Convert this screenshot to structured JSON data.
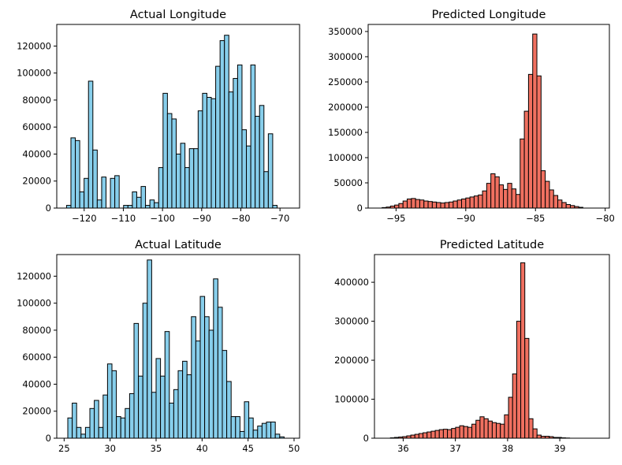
{
  "chart_data": [
    {
      "type": "bar",
      "title": "Actual Longitude",
      "xlim": [
        -127,
        -65
      ],
      "ylim": [
        0,
        136000
      ],
      "xticks": [
        -120,
        -110,
        -100,
        -90,
        -80,
        -70
      ],
      "yticks": [
        0,
        20000,
        40000,
        60000,
        80000,
        100000,
        120000
      ],
      "bin_start": -124.5,
      "bin_width": 1.12,
      "values": [
        2000,
        52000,
        50000,
        12000,
        22000,
        94000,
        43000,
        6000,
        23000,
        0,
        22000,
        24000,
        0,
        2000,
        2000,
        12000,
        8000,
        16000,
        2000,
        6000,
        4000,
        30000,
        85000,
        70000,
        66000,
        40000,
        48000,
        30000,
        44000,
        44000,
        72000,
        85000,
        82000,
        81000,
        105000,
        124000,
        128000,
        86000,
        96000,
        106000,
        58000,
        46000,
        106000,
        68000,
        76000,
        27000,
        55000,
        2000
      ],
      "color": "#87ceeb"
    },
    {
      "type": "bar",
      "title": "Predicted Longitude",
      "xlim": [
        -97,
        -79.7
      ],
      "ylim": [
        0,
        364000
      ],
      "xticks": [
        -95,
        -90,
        -85,
        -80
      ],
      "yticks": [
        0,
        50000,
        100000,
        150000,
        200000,
        250000,
        300000,
        350000
      ],
      "bin_start": -96.3,
      "bin_width": 0.3,
      "values": [
        0,
        1000,
        2000,
        4000,
        6000,
        9000,
        14000,
        18000,
        19000,
        17000,
        16000,
        14000,
        13000,
        12000,
        11000,
        10000,
        11000,
        12000,
        14000,
        16000,
        18000,
        20000,
        22000,
        24000,
        26000,
        34000,
        49000,
        68000,
        62000,
        46000,
        37000,
        49000,
        38000,
        27000,
        137000,
        192000,
        265000,
        345000,
        262000,
        74000,
        53000,
        36000,
        25000,
        16000,
        11000,
        7000,
        5000,
        3000,
        1500
      ],
      "color": "#f07060"
    },
    {
      "type": "bar",
      "title": "Actual Latitude",
      "xlim": [
        24.2,
        50.6
      ],
      "ylim": [
        0,
        136000
      ],
      "xticks": [
        25,
        30,
        35,
        40,
        45,
        50
      ],
      "yticks": [
        0,
        20000,
        40000,
        60000,
        80000,
        100000,
        120000
      ],
      "bin_start": 25.4,
      "bin_width": 0.48,
      "values": [
        15000,
        26000,
        8000,
        3000,
        8000,
        22000,
        28000,
        8000,
        32000,
        55000,
        50000,
        16000,
        15000,
        22000,
        33000,
        85000,
        46000,
        100000,
        132000,
        34000,
        59000,
        46000,
        79000,
        26000,
        36000,
        50000,
        57000,
        47000,
        90000,
        72000,
        105000,
        90000,
        80000,
        118000,
        97000,
        65000,
        42000,
        16000,
        16000,
        5000,
        27000,
        15000,
        6000,
        9000,
        11000,
        12000,
        12000,
        3000,
        1000
      ],
      "color": "#87ceeb"
    },
    {
      "type": "bar",
      "title": "Predicted Latitude",
      "xlim": [
        35.45,
        39.95
      ],
      "ylim": [
        0,
        471000
      ],
      "xticks": [
        36,
        37,
        38,
        39
      ],
      "yticks": [
        0,
        100000,
        200000,
        300000,
        400000
      ],
      "bin_start": 35.6,
      "bin_width": 0.078,
      "values": [
        0,
        0,
        1000,
        2000,
        3000,
        4000,
        6000,
        8000,
        10000,
        12000,
        14000,
        16000,
        18000,
        20000,
        22000,
        23000,
        22000,
        25000,
        28000,
        32000,
        30000,
        28000,
        36000,
        46000,
        55000,
        50000,
        44000,
        40000,
        38000,
        36000,
        60000,
        105000,
        165000,
        300000,
        450000,
        256000,
        50000,
        24000,
        8000,
        5000,
        5000,
        4000,
        2000,
        2000,
        1000,
        500,
        0,
        0,
        0,
        0,
        0,
        0
      ],
      "color": "#f07060"
    }
  ]
}
